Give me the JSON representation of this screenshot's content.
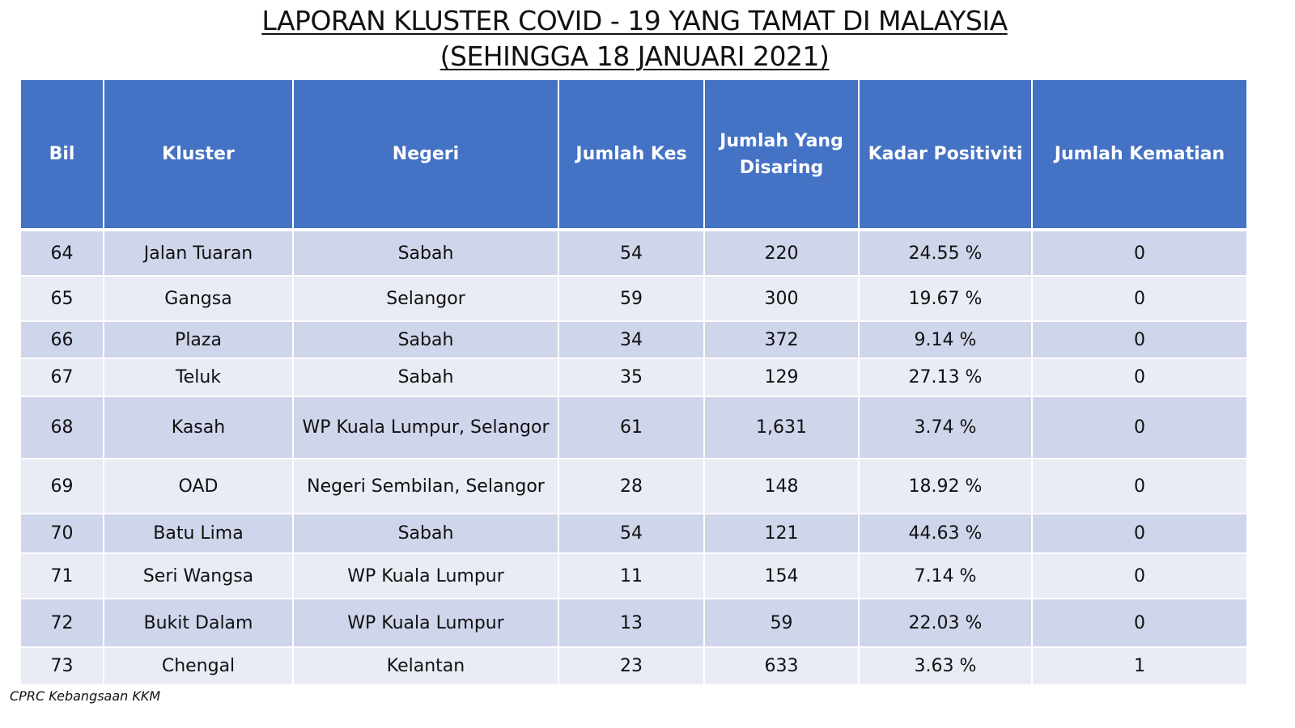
{
  "title": {
    "line1": "LAPORAN KLUSTER COVID - 19 YANG TAMAT DI MALAYSIA",
    "line2": "(SEHINGGA 18 JANUARI 2021)"
  },
  "table": {
    "headers": [
      "Bil",
      "Kluster",
      "Negeri",
      "Jumlah Kes",
      "Jumlah Yang Disaring",
      "Kadar Positiviti",
      "Jumlah Kematian"
    ],
    "rows": [
      [
        "64",
        "Jalan Tuaran",
        "Sabah",
        "54",
        "220",
        "24.55 %",
        "0"
      ],
      [
        "65",
        "Gangsa",
        "Selangor",
        "59",
        "300",
        "19.67 %",
        "0"
      ],
      [
        "66",
        "Plaza",
        "Sabah",
        "34",
        "372",
        "9.14 %",
        "0"
      ],
      [
        "67",
        "Teluk",
        "Sabah",
        "35",
        "129",
        "27.13 %",
        "0"
      ],
      [
        "68",
        "Kasah",
        "WP Kuala Lumpur, Selangor",
        "61",
        "1,631",
        "3.74 %",
        "0"
      ],
      [
        "69",
        "OAD",
        "Negeri Sembilan, Selangor",
        "28",
        "148",
        "18.92 %",
        "0"
      ],
      [
        "70",
        "Batu Lima",
        "Sabah",
        "54",
        "121",
        "44.63 %",
        "0"
      ],
      [
        "71",
        "Seri Wangsa",
        "WP Kuala Lumpur",
        "11",
        "154",
        "7.14 %",
        "0"
      ],
      [
        "72",
        "Bukit Dalam",
        "WP Kuala Lumpur",
        "13",
        "59",
        "22.03 %",
        "0"
      ],
      [
        "73",
        "Chengal",
        "Kelantan",
        "23",
        "633",
        "3.63 %",
        "1"
      ]
    ]
  },
  "source": "CPRC Kebangsaan KKM",
  "colors": {
    "header_bg": "#4472c4",
    "row_odd_bg": "#cfd5ea",
    "row_even_bg": "#e9ebf5"
  }
}
